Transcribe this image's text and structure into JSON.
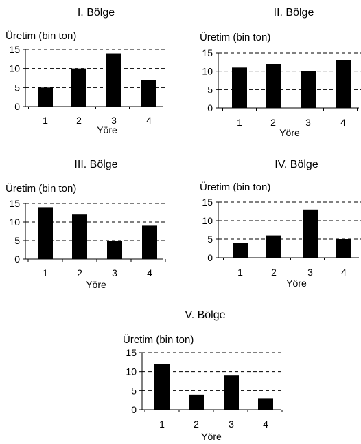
{
  "chart_data": [
    {
      "type": "bar",
      "title": "I. Bölge",
      "ylabel": "Üretim (bin ton)",
      "xlabel": "Yöre",
      "categories": [
        "1",
        "2",
        "3",
        "4"
      ],
      "values": [
        5,
        10,
        14,
        7
      ],
      "ylim": [
        0,
        15
      ],
      "yticks": [
        0,
        5,
        10,
        15
      ],
      "grid": "dashed-horizontal",
      "bar_color": "#000000"
    },
    {
      "type": "bar",
      "title": "II. Bölge",
      "ylabel": "Üretim (bin ton)",
      "xlabel": "Yöre",
      "categories": [
        "1",
        "2",
        "3",
        "4"
      ],
      "values": [
        11,
        12,
        10,
        13
      ],
      "ylim": [
        0,
        15
      ],
      "yticks": [
        0,
        5,
        10,
        15
      ],
      "grid": "dashed-horizontal",
      "bar_color": "#000000"
    },
    {
      "type": "bar",
      "title": "III. Bölge",
      "ylabel": "Üretim (bin ton)",
      "xlabel": "Yöre",
      "categories": [
        "1",
        "2",
        "3",
        "4"
      ],
      "values": [
        14,
        12,
        5,
        9
      ],
      "ylim": [
        0,
        15
      ],
      "yticks": [
        0,
        5,
        10,
        15
      ],
      "grid": "dashed-horizontal",
      "bar_color": "#000000"
    },
    {
      "type": "bar",
      "title": "IV. Bölge",
      "ylabel": "Üretim (bin ton)",
      "xlabel": "Yöre",
      "categories": [
        "1",
        "2",
        "3",
        "4"
      ],
      "values": [
        4,
        6,
        13,
        5
      ],
      "ylim": [
        0,
        15
      ],
      "yticks": [
        0,
        5,
        10,
        15
      ],
      "grid": "dashed-horizontal",
      "bar_color": "#000000"
    },
    {
      "type": "bar",
      "title": "V. Bölge",
      "ylabel": "Üretim (bin ton)",
      "xlabel": "Yöre",
      "categories": [
        "1",
        "2",
        "3",
        "4"
      ],
      "values": [
        12,
        4,
        9,
        3
      ],
      "ylim": [
        0,
        15
      ],
      "yticks": [
        0,
        5,
        10,
        15
      ],
      "grid": "dashed-horizontal",
      "bar_color": "#000000"
    }
  ]
}
